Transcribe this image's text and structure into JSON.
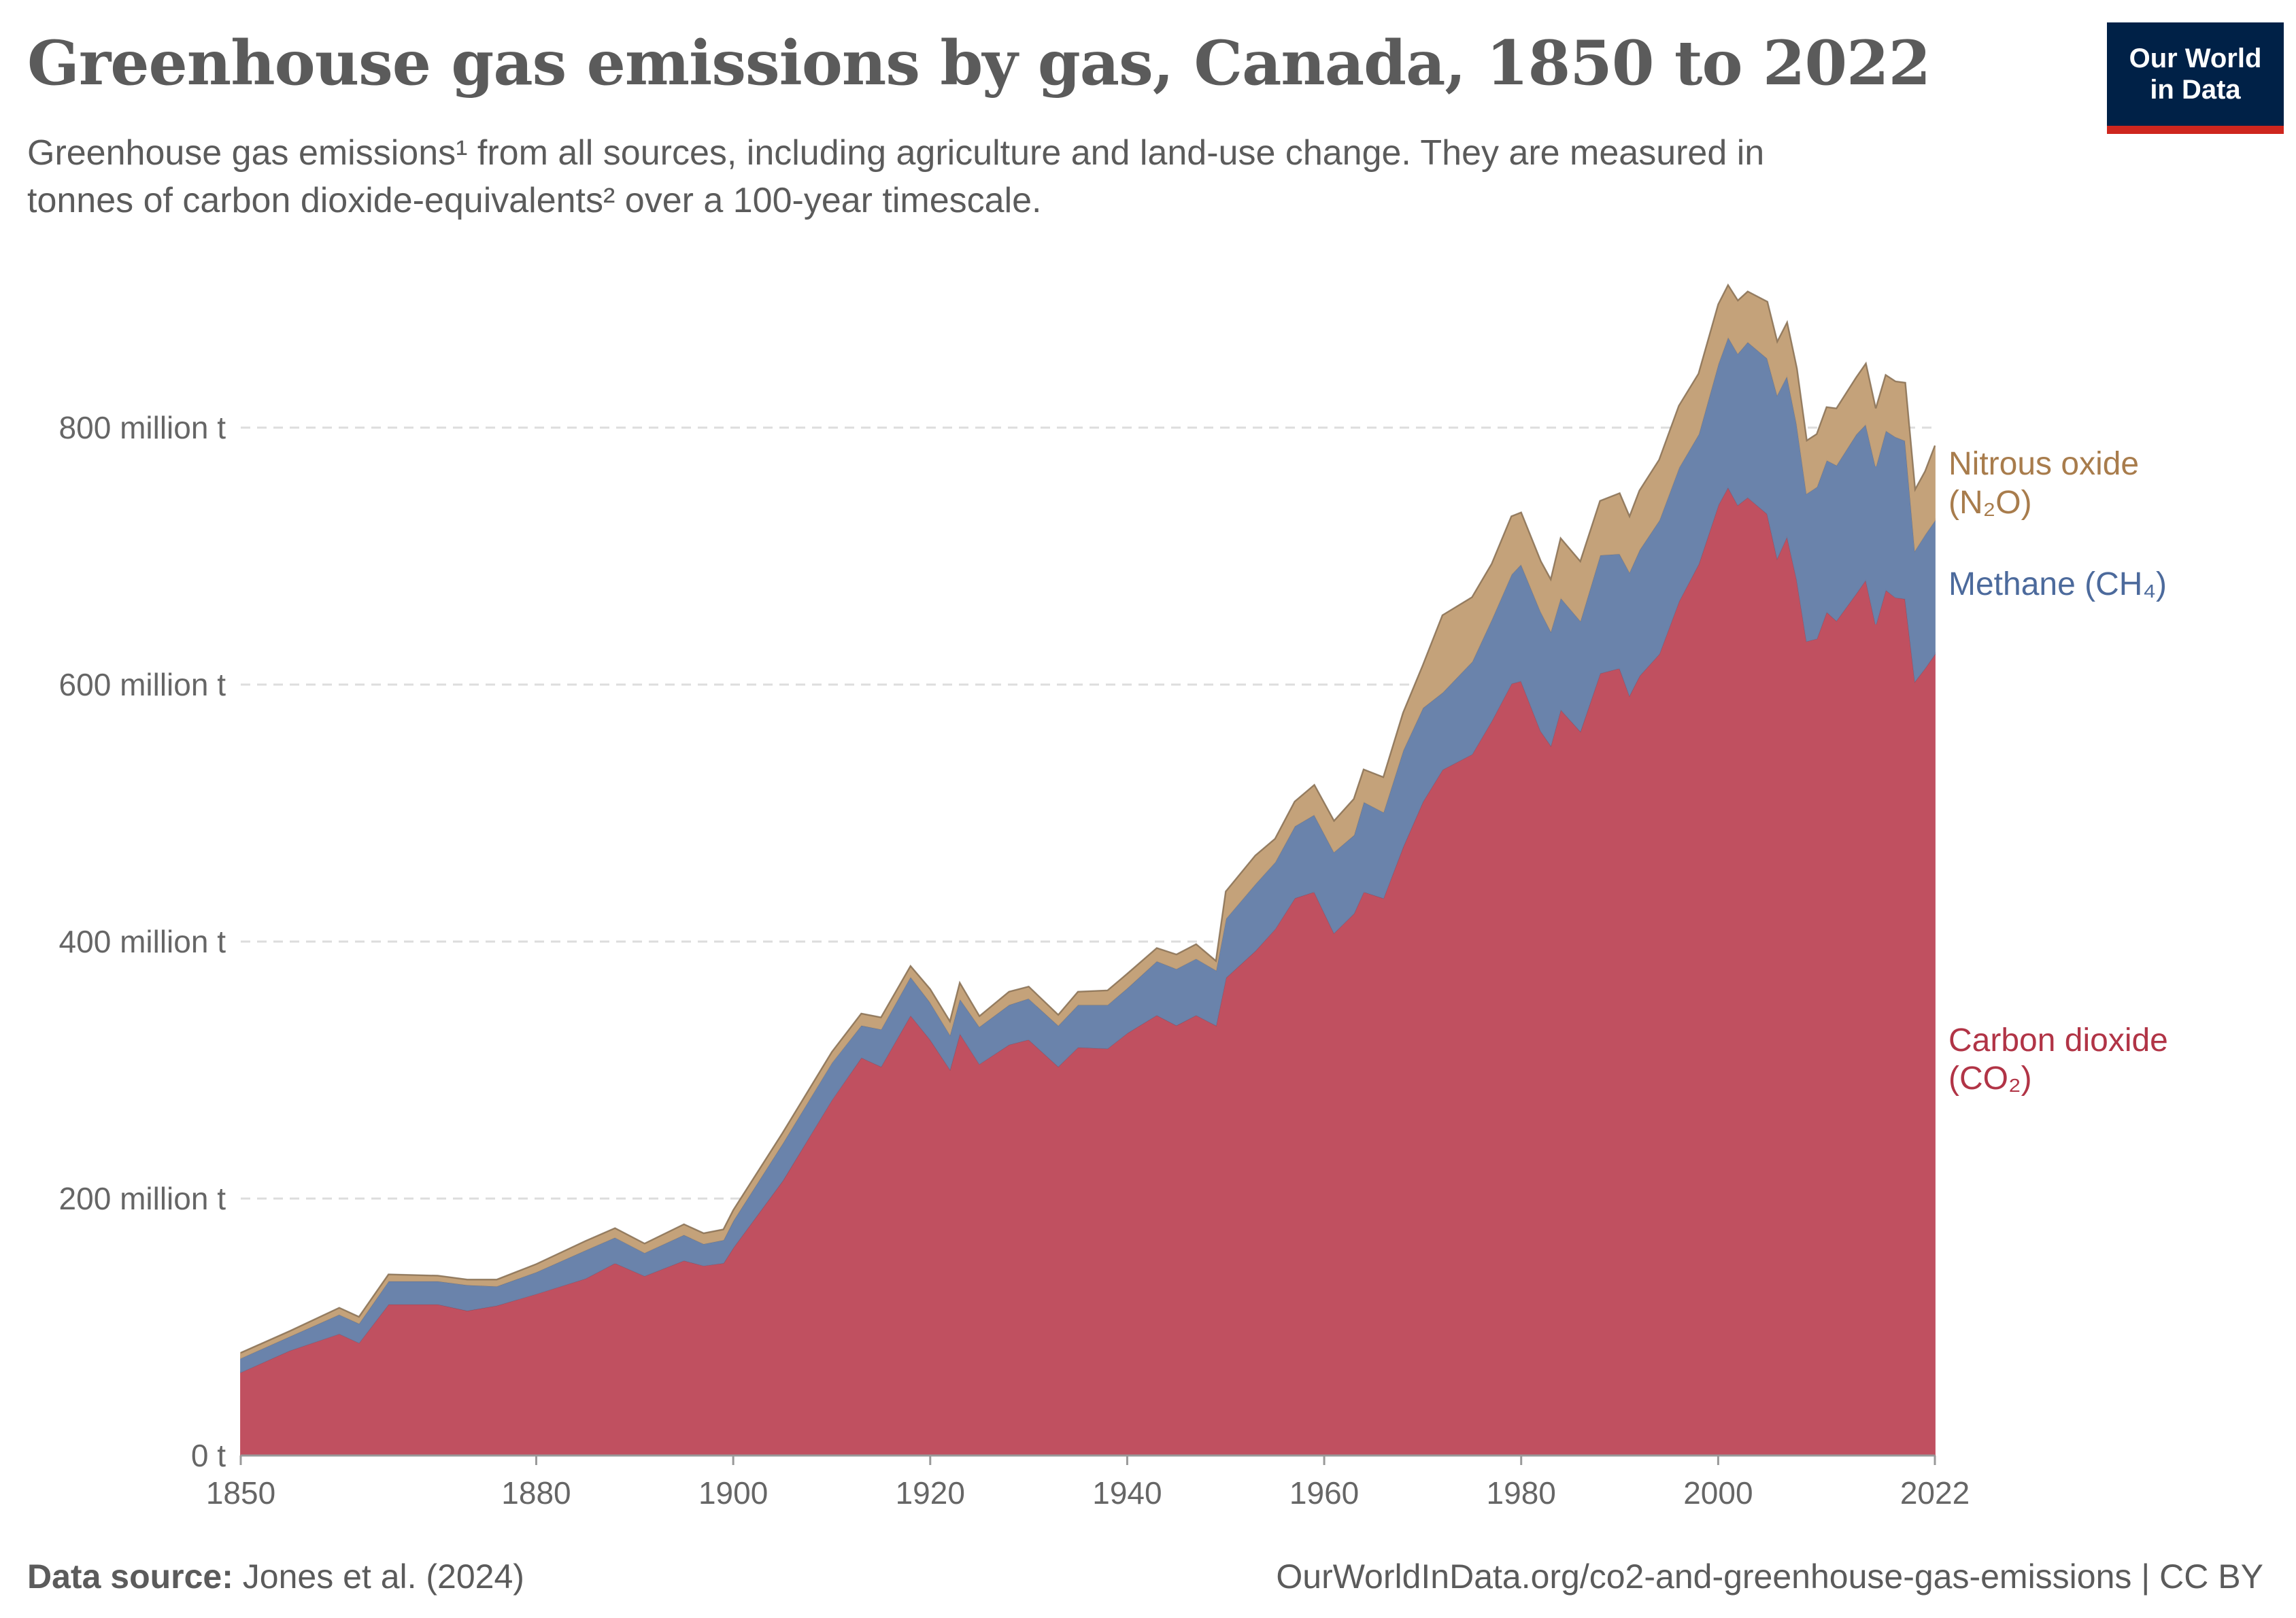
{
  "header": {
    "title": "Greenhouse gas emissions by gas, Canada, 1850 to 2022",
    "subtitle_line1": "Greenhouse gas emissions¹ from all sources, including agriculture and land-use change. They are measured in",
    "subtitle_line2": "tonnes of carbon dioxide-equivalents² over a 100-year timescale.",
    "logo_line1": "Our World",
    "logo_line2": "in Data"
  },
  "footer": {
    "source_label": "Data source:",
    "source_text": "Jones et al. (2024)",
    "url_license": "OurWorldInData.org/co2-and-greenhouse-gas-emissions | CC BY"
  },
  "chart_data": {
    "type": "area",
    "stacked": true,
    "title": "Greenhouse gas emissions by gas, Canada, 1850 to 2022",
    "ylabel": "",
    "xlabel": "",
    "unit": "million t",
    "xlim": [
      1850,
      2022
    ],
    "ylim": [
      0,
      920
    ],
    "grid": "horizontal dashed",
    "legend": "right, inline labels",
    "y_ticks": [
      {
        "value": 0,
        "label": "0 t"
      },
      {
        "value": 200,
        "label": "200 million t"
      },
      {
        "value": 400,
        "label": "400 million t"
      },
      {
        "value": 600,
        "label": "600 million t"
      },
      {
        "value": 800,
        "label": "800 million t"
      }
    ],
    "x_ticks": [
      {
        "value": 1850,
        "label": "1850"
      },
      {
        "value": 1880,
        "label": "1880"
      },
      {
        "value": 1900,
        "label": "1900"
      },
      {
        "value": 1920,
        "label": "1920"
      },
      {
        "value": 1940,
        "label": "1940"
      },
      {
        "value": 1960,
        "label": "1960"
      },
      {
        "value": 1980,
        "label": "1980"
      },
      {
        "value": 2000,
        "label": "2000"
      },
      {
        "value": 2022,
        "label": "2022"
      }
    ],
    "x": [
      1850,
      1855,
      1860,
      1862,
      1865,
      1870,
      1873,
      1876,
      1880,
      1885,
      1888,
      1891,
      1895,
      1897,
      1899,
      1900,
      1905,
      1910,
      1913,
      1915,
      1918,
      1920,
      1922,
      1923,
      1925,
      1928,
      1930,
      1933,
      1935,
      1938,
      1940,
      1943,
      1945,
      1947,
      1949,
      1950,
      1953,
      1955,
      1957,
      1959,
      1961,
      1963,
      1964,
      1966,
      1968,
      1970,
      1972,
      1975,
      1977,
      1979,
      1980,
      1982,
      1983,
      1984,
      1986,
      1988,
      1990,
      1991,
      1992,
      1994,
      1996,
      1998,
      2000,
      2001,
      2002,
      2003,
      2005,
      2006,
      2007,
      2008,
      2009,
      2010,
      2011,
      2012,
      2014,
      2015,
      2016,
      2017,
      2018,
      2019,
      2020,
      2021,
      2022
    ],
    "series": [
      {
        "name": "Carbon dioxide (CO₂)",
        "label_line1": "Carbon dioxide",
        "label_line2": "(CO₂)",
        "color": "#c05060",
        "label_color": "#b13446",
        "values": [
          65,
          82,
          95,
          88,
          118,
          118,
          113,
          117,
          126,
          138,
          150,
          140,
          152,
          148,
          150,
          162,
          214,
          277,
          310,
          303,
          343,
          324,
          301,
          329,
          305,
          320,
          324,
          303,
          318,
          317,
          329,
          343,
          335,
          343,
          335,
          372,
          393,
          410,
          434,
          439,
          407,
          422,
          439,
          434,
          474,
          509,
          534,
          546,
          572,
          601,
          603,
          564,
          553,
          581,
          564,
          609,
          613,
          592,
          607,
          624,
          665,
          694,
          740,
          754,
          740,
          746,
          733,
          699,
          716,
          682,
          634,
          636,
          657,
          650,
          671,
          682,
          647,
          674,
          668,
          667,
          603,
          613,
          624
        ]
      },
      {
        "name": "Methane (CH₄)",
        "label_line1": "Methane (CH₄)",
        "label_line2": "",
        "color": "#6a83ab",
        "label_color": "#4c6a9c",
        "values": [
          11,
          11,
          15,
          15,
          18,
          18,
          20,
          15,
          17,
          22,
          20,
          18,
          20,
          17,
          18,
          21,
          29,
          29,
          25,
          29,
          30,
          29,
          27,
          27,
          29,
          31,
          32,
          32,
          33,
          34,
          35,
          42,
          44,
          44,
          43,
          46,
          52,
          52,
          56,
          60,
          63,
          61,
          70,
          67,
          75,
          73,
          60,
          72,
          79,
          85,
          91,
          93,
          89,
          87,
          86,
          92,
          89,
          96,
          98,
          104,
          104,
          101,
          110,
          117,
          118,
          121,
          121,
          127,
          125,
          121,
          115,
          118,
          118,
          121,
          124,
          121,
          123,
          124,
          125,
          123,
          102,
          104,
          104
        ]
      },
      {
        "name": "Nitrous oxide (N₂O)",
        "label_line1": "Nitrous oxide",
        "label_line2": "(N₂O)",
        "color": "#c4a27a",
        "label_color": "#a87c4c",
        "values": [
          4,
          4,
          5,
          5,
          5,
          4,
          4,
          5,
          6,
          7,
          7,
          7,
          8,
          8,
          8,
          8,
          8,
          8,
          9,
          9,
          8,
          10,
          10,
          12,
          8,
          10,
          9,
          8,
          10,
          11,
          11,
          10,
          11,
          11,
          7,
          21,
          22,
          18,
          19,
          23,
          24,
          28,
          25,
          27,
          29,
          33,
          60,
          50,
          43,
          45,
          40,
          39,
          40,
          46,
          46,
          42,
          47,
          43,
          46,
          47,
          48,
          47,
          46,
          40,
          41,
          39,
          44,
          41,
          41,
          43,
          41,
          41,
          41,
          44,
          44,
          47,
          45,
          43,
          43,
          45,
          47,
          49,
          58
        ]
      }
    ]
  }
}
